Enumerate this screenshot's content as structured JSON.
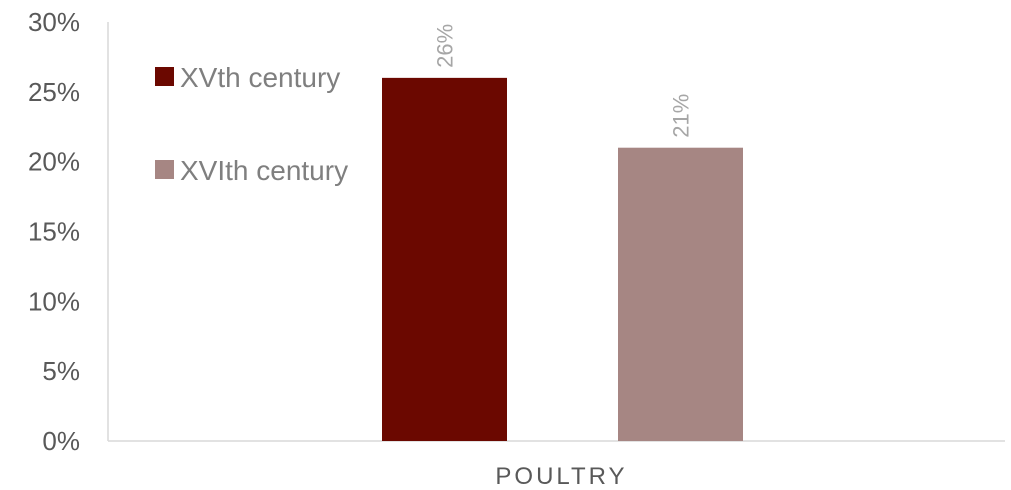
{
  "chart_data": {
    "type": "bar",
    "title": "",
    "xlabel": "",
    "ylabel": "",
    "categories": [
      "POULTRY"
    ],
    "ylim": [
      0,
      0.3
    ],
    "yticks": [
      "0%",
      "5%",
      "10%",
      "15%",
      "20%",
      "25%",
      "30%"
    ],
    "ytick_values": [
      0,
      0.05,
      0.1,
      0.15,
      0.2,
      0.25,
      0.3
    ],
    "grid": false,
    "legend_position": "top-left",
    "series": [
      {
        "name": "XVth century",
        "values": [
          0.26
        ],
        "data_labels": [
          "26%"
        ],
        "color": "#6b0800"
      },
      {
        "name": "XVIth century",
        "values": [
          0.21
        ],
        "data_labels": [
          "21%"
        ],
        "color": "#a68683"
      }
    ]
  }
}
